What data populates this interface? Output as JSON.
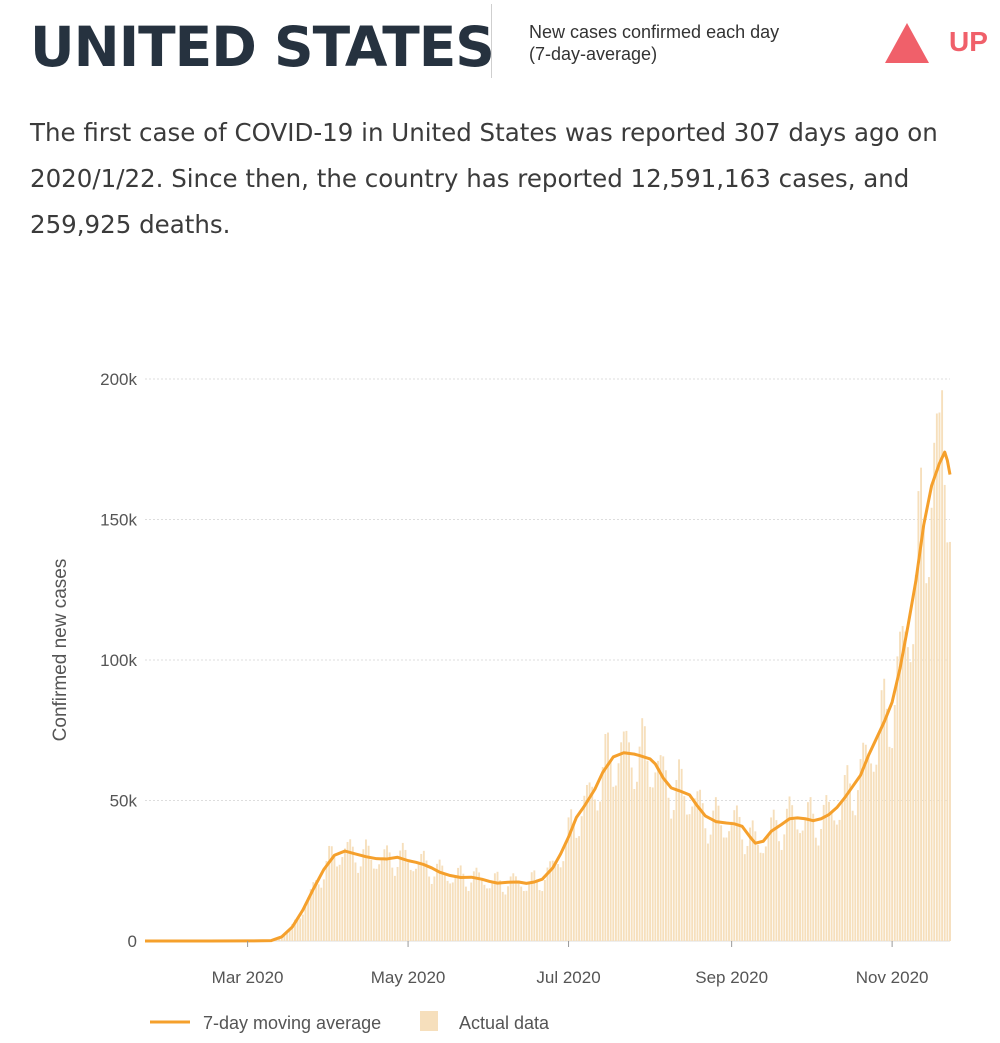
{
  "header": {
    "country": "UNITED STATES",
    "caption_line1": "New cases confirmed each day",
    "caption_line2": "(7-day-average)",
    "trend_label": "UP",
    "trend_icon": "triangle-up-icon",
    "trend_color": "#f0606a"
  },
  "summary": {
    "text": "The first case of COVID-19 in United States was reported 307 days ago on 2020/1/22. Since then, the country has reported 12,591,163 cases, and 259,925 deaths."
  },
  "colors": {
    "line": "#f5a02c",
    "bars": "#f6dfbc",
    "grid": "#dddddd",
    "heading": "#26323f"
  },
  "chart_data": {
    "type": "bar",
    "ylabel": "Confirmed new cases",
    "ylim": [
      0,
      200000
    ],
    "yticks": [
      {
        "value": 0,
        "label": "0"
      },
      {
        "value": 50000,
        "label": "50k"
      },
      {
        "value": 100000,
        "label": "100k"
      },
      {
        "value": 150000,
        "label": "150k"
      },
      {
        "value": 200000,
        "label": "200k"
      }
    ],
    "xlim": [
      "2020-01-22",
      "2020-11-23"
    ],
    "xticks": [
      {
        "date": "2020-03-01",
        "label": "Mar 2020"
      },
      {
        "date": "2020-05-01",
        "label": "May 2020"
      },
      {
        "date": "2020-07-01",
        "label": "Jul 2020"
      },
      {
        "date": "2020-09-01",
        "label": "Sep 2020"
      },
      {
        "date": "2020-11-01",
        "label": "Nov 2020"
      }
    ],
    "legend_position": "bottom-left",
    "series": [
      {
        "name": "7-day moving average",
        "type": "line",
        "points": [
          [
            "2020-01-22",
            0
          ],
          [
            "2020-02-15",
            10
          ],
          [
            "2020-03-01",
            30
          ],
          [
            "2020-03-10",
            150
          ],
          [
            "2020-03-14",
            1500
          ],
          [
            "2020-03-18",
            5000
          ],
          [
            "2020-03-22",
            11000
          ],
          [
            "2020-03-26",
            18500
          ],
          [
            "2020-03-30",
            25500
          ],
          [
            "2020-04-03",
            30500
          ],
          [
            "2020-04-07",
            32000
          ],
          [
            "2020-04-11",
            31000
          ],
          [
            "2020-04-15",
            30000
          ],
          [
            "2020-04-19",
            29300
          ],
          [
            "2020-04-23",
            29200
          ],
          [
            "2020-04-27",
            29800
          ],
          [
            "2020-05-01",
            28600
          ],
          [
            "2020-05-04",
            28000
          ],
          [
            "2020-05-07",
            27200
          ],
          [
            "2020-05-10",
            26000
          ],
          [
            "2020-05-13",
            24500
          ],
          [
            "2020-05-17",
            23300
          ],
          [
            "2020-05-21",
            22600
          ],
          [
            "2020-05-25",
            22700
          ],
          [
            "2020-05-29",
            22000
          ],
          [
            "2020-06-01",
            21200
          ],
          [
            "2020-06-04",
            20600
          ],
          [
            "2020-06-08",
            20900
          ],
          [
            "2020-06-12",
            21000
          ],
          [
            "2020-06-15",
            20500
          ],
          [
            "2020-06-18",
            21000
          ],
          [
            "2020-06-21",
            22000
          ],
          [
            "2020-06-25",
            26000
          ],
          [
            "2020-06-28",
            31000
          ],
          [
            "2020-07-01",
            37000
          ],
          [
            "2020-07-04",
            44000
          ],
          [
            "2020-07-07",
            48000
          ],
          [
            "2020-07-11",
            54000
          ],
          [
            "2020-07-14",
            60000
          ],
          [
            "2020-07-18",
            65500
          ],
          [
            "2020-07-22",
            67000
          ],
          [
            "2020-07-26",
            66500
          ],
          [
            "2020-07-28",
            66000
          ],
          [
            "2020-08-01",
            64800
          ],
          [
            "2020-08-03",
            63000
          ],
          [
            "2020-08-06",
            58000
          ],
          [
            "2020-08-09",
            54500
          ],
          [
            "2020-08-12",
            53500
          ],
          [
            "2020-08-16",
            52000
          ],
          [
            "2020-08-19",
            48000
          ],
          [
            "2020-08-22",
            44500
          ],
          [
            "2020-08-26",
            42500
          ],
          [
            "2020-08-30",
            42000
          ],
          [
            "2020-09-02",
            41700
          ],
          [
            "2020-09-05",
            40800
          ],
          [
            "2020-09-08",
            37000
          ],
          [
            "2020-09-10",
            34800
          ],
          [
            "2020-09-13",
            35500
          ],
          [
            "2020-09-16",
            39000
          ],
          [
            "2020-09-20",
            41500
          ],
          [
            "2020-09-23",
            43500
          ],
          [
            "2020-09-26",
            43800
          ],
          [
            "2020-09-29",
            43500
          ],
          [
            "2020-10-02",
            42800
          ],
          [
            "2020-10-05",
            43500
          ],
          [
            "2020-10-08",
            45000
          ],
          [
            "2020-10-11",
            47500
          ],
          [
            "2020-10-14",
            51000
          ],
          [
            "2020-10-17",
            55000
          ],
          [
            "2020-10-20",
            59000
          ],
          [
            "2020-10-23",
            66000
          ],
          [
            "2020-10-26",
            72000
          ],
          [
            "2020-10-29",
            78000
          ],
          [
            "2020-11-01",
            85000
          ],
          [
            "2020-11-04",
            97000
          ],
          [
            "2020-11-07",
            112000
          ],
          [
            "2020-11-10",
            128000
          ],
          [
            "2020-11-13",
            148000
          ],
          [
            "2020-11-16",
            162000
          ],
          [
            "2020-11-19",
            170000
          ],
          [
            "2020-11-21",
            174000
          ],
          [
            "2020-11-22",
            171000
          ],
          [
            "2020-11-23",
            166000
          ]
        ]
      },
      {
        "name": "Actual data",
        "type": "bar",
        "note": "daily counts follow the moving average with weekly variation",
        "peak": [
          "2020-11-20",
          196000
        ]
      }
    ]
  }
}
